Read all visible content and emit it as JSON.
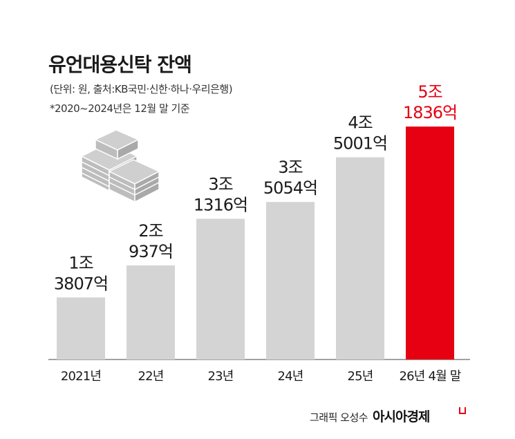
{
  "title": "유언대용신탁 잔액",
  "unit_note": "(단위: 원, 출처:KB국민·신한·하나·우리은행)",
  "basis_note": "*2020~2024년은 12월 말 기준",
  "credit": {
    "graphic": "그래픽 오성수",
    "brand": "아시아경제"
  },
  "icon": "money-stack-icon",
  "colors": {
    "bar": "#d4d4d4",
    "highlight_bar": "#e60012",
    "label": "#1a1a1a",
    "highlight_label": "#e60012",
    "baseline": "#444444"
  },
  "chart_data": {
    "type": "bar",
    "unit": "원",
    "categories": [
      "2021년",
      "22년",
      "23년",
      "24년",
      "25년",
      "26년 4월 말"
    ],
    "values_eok": [
      13807,
      20937,
      31316,
      35054,
      45001,
      51836
    ],
    "value_labels": [
      [
        "1조",
        "3807억"
      ],
      [
        "2조",
        "937억"
      ],
      [
        "3조",
        "1316억"
      ],
      [
        "3조",
        "5054억"
      ],
      [
        "4조",
        "5001억"
      ],
      [
        "5조",
        "1836억"
      ]
    ],
    "highlight_index": 5,
    "ylim": [
      0,
      60000
    ],
    "grid": false,
    "legend": "none"
  }
}
